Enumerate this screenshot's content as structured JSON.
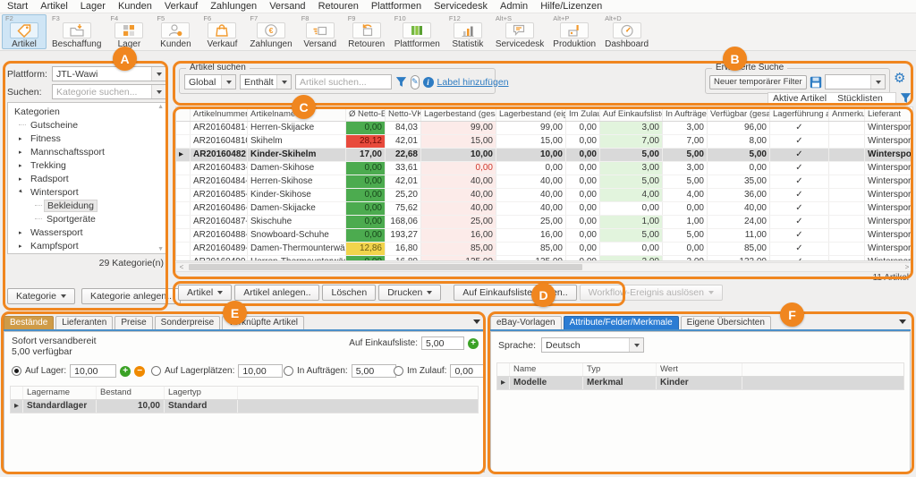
{
  "colors": {
    "accent_orange": "#f0861f",
    "tab_blue": "#2b7cd3",
    "tab_tan": "#cf9b47",
    "green_cell": "#4cab4f",
    "red_cell": "#e84a3c",
    "yellow_cell": "#f2d44c",
    "link_blue": "#2e7cc3"
  },
  "annotations": {
    "badges": [
      "A",
      "B",
      "C",
      "D",
      "E",
      "F"
    ]
  },
  "menu": {
    "items": [
      "Start",
      "Artikel",
      "Lager",
      "Kunden",
      "Verkauf",
      "Zahlungen",
      "Versand",
      "Retouren",
      "Plattformen",
      "Servicedesk",
      "Admin",
      "Hilfe/Lizenzen"
    ]
  },
  "toolbar": {
    "buttons": [
      {
        "key": "F2",
        "label": "Artikel",
        "icon": "tag-icon",
        "selected": true
      },
      {
        "key": "F3",
        "label": "Beschaffung",
        "icon": "procurement-icon",
        "selected": false
      },
      {
        "key": "F4",
        "label": "Lager",
        "icon": "warehouse-icon",
        "selected": false
      },
      {
        "key": "F5",
        "label": "Kunden",
        "icon": "customers-icon",
        "selected": false
      },
      {
        "key": "F6",
        "label": "Verkauf",
        "icon": "sales-icon",
        "selected": false
      },
      {
        "key": "F7",
        "label": "Zahlungen",
        "icon": "payments-icon",
        "selected": false
      },
      {
        "key": "F8",
        "label": "Versand",
        "icon": "shipping-icon",
        "selected": false
      },
      {
        "key": "F9",
        "label": "Retouren",
        "icon": "returns-icon",
        "selected": false
      },
      {
        "key": "F10",
        "label": "Plattformen",
        "icon": "platforms-icon",
        "selected": false
      },
      {
        "key": "F12",
        "label": "Statistik",
        "icon": "statistics-icon",
        "selected": false
      },
      {
        "key": "Alt+S",
        "label": "Servicedesk",
        "icon": "servicedesk-icon",
        "selected": false
      },
      {
        "key": "Alt+P",
        "label": "Produktion",
        "icon": "production-icon",
        "selected": false
      },
      {
        "key": "Alt+D",
        "label": "Dashboard",
        "icon": "dashboard-icon",
        "selected": false
      }
    ]
  },
  "sidebar": {
    "platform_label": "Plattform:",
    "platform_value": "JTL-Wawi",
    "search_label": "Suchen:",
    "search_placeholder": "Kategorie suchen...",
    "tree": [
      {
        "label": "Kategorien",
        "level": 0,
        "arrow": "none",
        "selected": false
      },
      {
        "label": "Gutscheine",
        "level": 1,
        "arrow": "none",
        "selected": false
      },
      {
        "label": "Fitness",
        "level": 1,
        "arrow": "collapsed",
        "selected": false
      },
      {
        "label": "Mannschaftssport",
        "level": 1,
        "arrow": "collapsed",
        "selected": false
      },
      {
        "label": "Trekking",
        "level": 1,
        "arrow": "collapsed",
        "selected": false
      },
      {
        "label": "Radsport",
        "level": 1,
        "arrow": "collapsed",
        "selected": false
      },
      {
        "label": "Wintersport",
        "level": 1,
        "arrow": "expanded",
        "selected": false
      },
      {
        "label": "Bekleidung",
        "level": 2,
        "arrow": "none",
        "selected": true
      },
      {
        "label": "Sportgeräte",
        "level": 2,
        "arrow": "none",
        "selected": false
      },
      {
        "label": "Wassersport",
        "level": 1,
        "arrow": "collapsed",
        "selected": false
      },
      {
        "label": "Kampfsport",
        "level": 1,
        "arrow": "collapsed",
        "selected": false
      }
    ],
    "count": "29 Kategorie(n)",
    "button_category": "Kategorie",
    "button_create": "Kategorie anlegen.."
  },
  "search": {
    "group_label": "Artikel suchen",
    "scope_value": "Global",
    "operator_value": "Enthält",
    "input_placeholder": "Artikel suchen...",
    "add_label_link": "Label hinzufügen",
    "advanced_group_label": "Erweiterte Suche",
    "new_filter_button": "Neuer temporärer Filter",
    "filter_tags": [
      "Aktive Artikel",
      "Stücklisten"
    ]
  },
  "table": {
    "columns": [
      "Artikelnummer",
      "Artikelname",
      "Ø Netto-EK",
      "Netto-VK",
      "Lagerbestand (gesamt)",
      "Lagerbestand (eigen)",
      "Im Zulauf",
      "Auf Einkaufsliste",
      "In Aufträgen",
      "Verfügbar (gesamt)",
      "Lagerführung aktiv",
      "Anmerkung",
      "Lieferant"
    ],
    "rows": [
      {
        "nr": "AR20160481-V..",
        "name": "Herren-Skijacke",
        "ek": "0,00",
        "ek_state": "green",
        "vk": "84,03",
        "total": "99,00",
        "total_alert": false,
        "own": "99,00",
        "inbound": "0,00",
        "shopping": "3,00",
        "shopping_green": true,
        "orders": "3,00",
        "available": "96,00",
        "active": true,
        "note": "",
        "supplier": "Wintersport Gö",
        "selected": false
      },
      {
        "nr": "AR201604810",
        "name": "Skihelm",
        "ek": "28,12",
        "ek_state": "red",
        "vk": "42,01",
        "total": "15,00",
        "total_alert": false,
        "own": "15,00",
        "inbound": "0,00",
        "shopping": "7,00",
        "shopping_green": true,
        "orders": "7,00",
        "available": "8,00",
        "active": true,
        "note": "",
        "supplier": "Wintersport Gö",
        "selected": false
      },
      {
        "nr": "AR20160482",
        "name": "Kinder-Skihelm",
        "ek": "17,00",
        "ek_state": "none",
        "vk": "22,68",
        "total": "10,00",
        "total_alert": false,
        "own": "10,00",
        "inbound": "0,00",
        "shopping": "5,00",
        "shopping_green": false,
        "orders": "5,00",
        "available": "5,00",
        "active": true,
        "note": "",
        "supplier": "Wintersport G",
        "selected": true
      },
      {
        "nr": "AR20160483-V..",
        "name": "Damen-Skihose",
        "ek": "0,00",
        "ek_state": "green",
        "vk": "33,61",
        "total": "0,00",
        "total_alert": true,
        "own": "0,00",
        "inbound": "0,00",
        "shopping": "3,00",
        "shopping_green": true,
        "orders": "3,00",
        "available": "0,00",
        "active": true,
        "note": "",
        "supplier": "Wintersport Gö",
        "selected": false
      },
      {
        "nr": "AR20160484-V..",
        "name": "Herren-Skihose",
        "ek": "0,00",
        "ek_state": "green",
        "vk": "42,01",
        "total": "40,00",
        "total_alert": false,
        "own": "40,00",
        "inbound": "0,00",
        "shopping": "5,00",
        "shopping_green": true,
        "orders": "5,00",
        "available": "35,00",
        "active": true,
        "note": "",
        "supplier": "Wintersport Gö",
        "selected": false
      },
      {
        "nr": "AR20160485-V..",
        "name": "Kinder-Skihose",
        "ek": "0,00",
        "ek_state": "green",
        "vk": "25,20",
        "total": "40,00",
        "total_alert": false,
        "own": "40,00",
        "inbound": "0,00",
        "shopping": "4,00",
        "shopping_green": true,
        "orders": "4,00",
        "available": "36,00",
        "active": true,
        "note": "",
        "supplier": "Wintersport Gö",
        "selected": false
      },
      {
        "nr": "AR20160486-V..",
        "name": "Damen-Skijacke",
        "ek": "0,00",
        "ek_state": "green",
        "vk": "75,62",
        "total": "40,00",
        "total_alert": false,
        "own": "40,00",
        "inbound": "0,00",
        "shopping": "0,00",
        "shopping_green": false,
        "orders": "0,00",
        "available": "40,00",
        "active": true,
        "note": "",
        "supplier": "Wintersport Gö",
        "selected": false
      },
      {
        "nr": "AR20160487-V..",
        "name": "Skischuhe",
        "ek": "0,00",
        "ek_state": "green",
        "vk": "168,06",
        "total": "25,00",
        "total_alert": false,
        "own": "25,00",
        "inbound": "0,00",
        "shopping": "1,00",
        "shopping_green": true,
        "orders": "1,00",
        "available": "24,00",
        "active": true,
        "note": "",
        "supplier": "Wintersport Gö",
        "selected": false
      },
      {
        "nr": "AR20160488-V..",
        "name": "Snowboard-Schuhe",
        "ek": "0,00",
        "ek_state": "green",
        "vk": "193,27",
        "total": "16,00",
        "total_alert": false,
        "own": "16,00",
        "inbound": "0,00",
        "shopping": "5,00",
        "shopping_green": true,
        "orders": "5,00",
        "available": "11,00",
        "active": true,
        "note": "",
        "supplier": "Wintersport Gö",
        "selected": false
      },
      {
        "nr": "AR20160489-V..",
        "name": "Damen-Thermounterwäsche",
        "ek": "12,86",
        "ek_state": "yellow",
        "vk": "16,80",
        "total": "85,00",
        "total_alert": false,
        "own": "85,00",
        "inbound": "0,00",
        "shopping": "0,00",
        "shopping_green": false,
        "orders": "0,00",
        "available": "85,00",
        "active": true,
        "note": "",
        "supplier": "Wintersport Gö",
        "selected": false
      },
      {
        "nr": "AR20160490-V..",
        "name": "Herren-Thermounterwäsche",
        "ek": "0,00",
        "ek_state": "green",
        "vk": "16,80",
        "total": "135,00",
        "total_alert": false,
        "own": "135,00",
        "inbound": "0,00",
        "shopping": "2,00",
        "shopping_green": true,
        "orders": "2,00",
        "available": "133,00",
        "active": true,
        "note": "",
        "supplier": "Wintersport Gö",
        "selected": false
      }
    ],
    "status": "11 Artikel"
  },
  "actions": {
    "buttons": [
      {
        "label": "Artikel",
        "dropdown": true,
        "disabled": false
      },
      {
        "label": "Artikel anlegen..",
        "dropdown": false,
        "disabled": false
      },
      {
        "label": "Löschen",
        "dropdown": false,
        "disabled": false
      },
      {
        "label": "Drucken",
        "dropdown": true,
        "disabled": false
      },
      {
        "label": "Auf Einkaufsliste setzen..",
        "dropdown": false,
        "disabled": false
      },
      {
        "label": "Workflow-Ereignis auslösen",
        "dropdown": true,
        "disabled": true
      }
    ]
  },
  "stock": {
    "tabs": [
      {
        "label": "Bestände",
        "selected": true
      },
      {
        "label": "Lieferanten",
        "selected": false
      },
      {
        "label": "Preise",
        "selected": false
      },
      {
        "label": "Sonderpreise",
        "selected": false
      },
      {
        "label": "Verknüpfte Artikel",
        "selected": false
      }
    ],
    "ready_title": "Sofort versandbereit",
    "ready_value": "5,00  verfügbar",
    "shopping_label": "Auf Einkaufsliste:",
    "shopping_value": "5,00",
    "radios": [
      {
        "label": "Auf Lager:",
        "value": "10,00",
        "selected": true
      },
      {
        "label": "Auf Lagerplätzen:",
        "value": "10,00",
        "selected": false
      },
      {
        "label": "In Aufträgen:",
        "value": "5,00",
        "selected": false
      },
      {
        "label": "Im Zulauf:",
        "value": "0,00",
        "selected": false
      }
    ],
    "table": {
      "columns": [
        "Lagername",
        "Bestand",
        "Lagertyp"
      ],
      "rows": [
        {
          "name": "Standardlager",
          "stock": "10,00",
          "type": "Standard",
          "selected": true
        }
      ]
    }
  },
  "attributes": {
    "tabs": [
      {
        "label": "eBay-Vorlagen",
        "selected": false
      },
      {
        "label": "Attribute/Felder/Merkmale",
        "selected": true
      },
      {
        "label": "Eigene Übersichten",
        "selected": false
      }
    ],
    "language_label": "Sprache:",
    "language_value": "Deutsch",
    "table": {
      "columns": [
        "Name",
        "Typ",
        "Wert"
      ],
      "rows": [
        {
          "name": "Modelle",
          "type": "Merkmal",
          "value": "Kinder",
          "selected": true
        }
      ]
    }
  }
}
